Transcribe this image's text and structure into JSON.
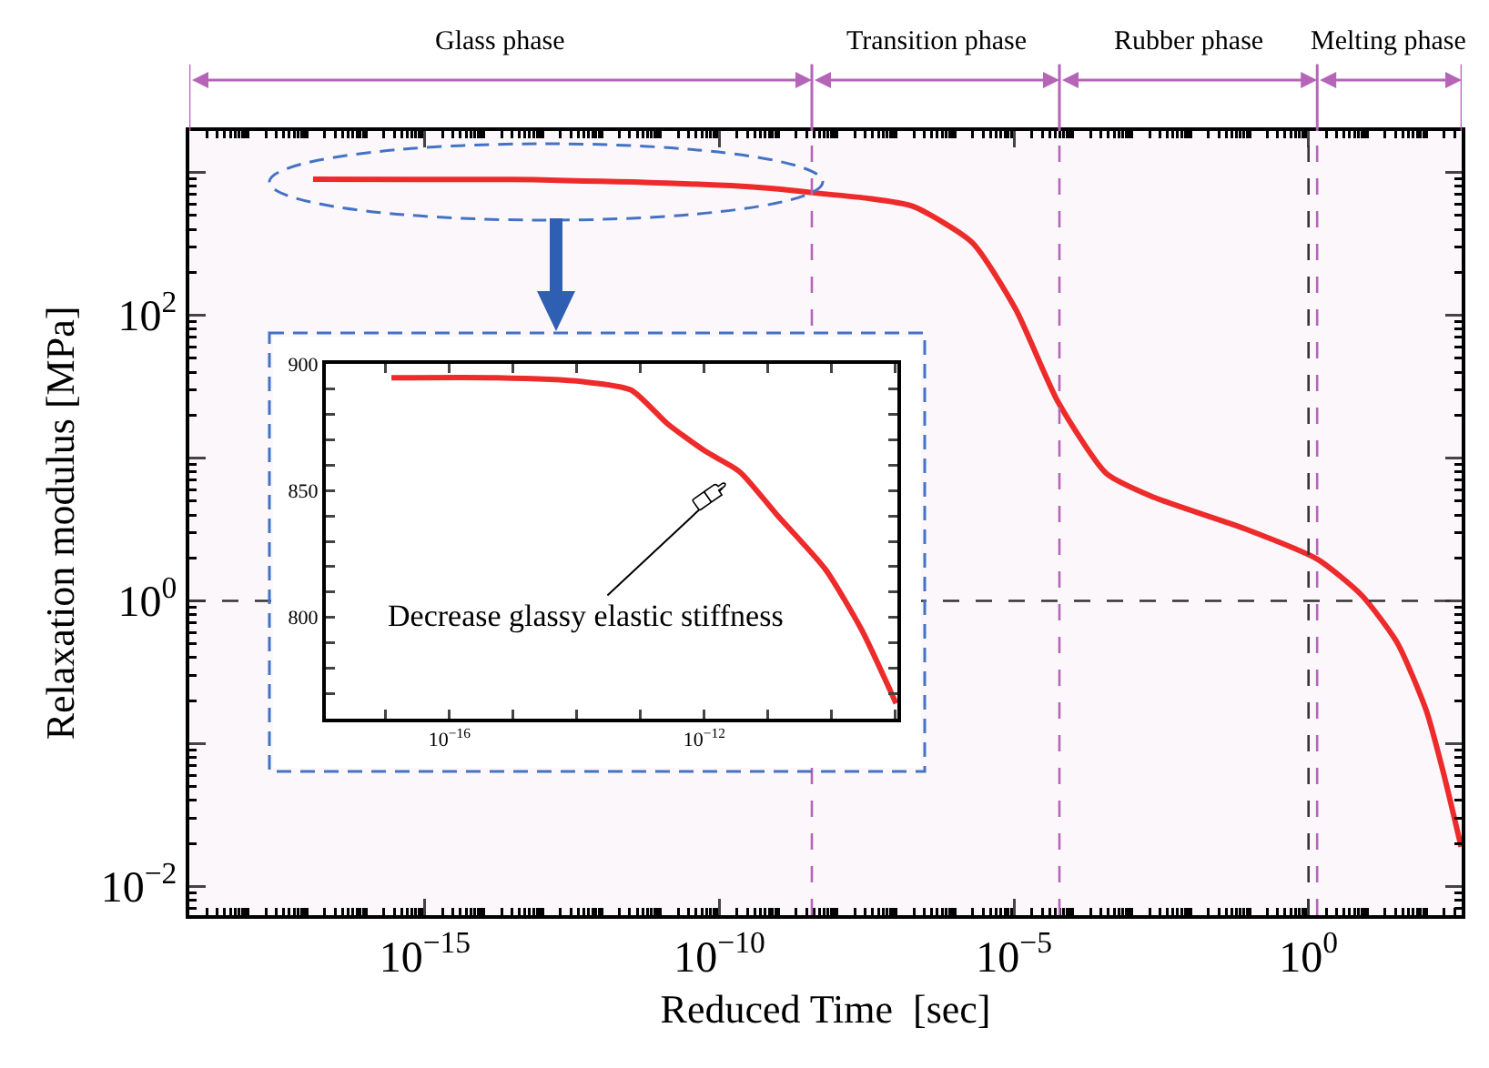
{
  "chart_data": [
    {
      "type": "line",
      "xlabel": "Reduced Time  [sec]",
      "ylabel": "Relaxation modulus [MPa]",
      "log": "xy",
      "grid": false,
      "xlim": [
        1e-19,
        398
      ],
      "ylim": [
        0.0063,
        1950
      ],
      "xticks": [
        {
          "value": 1e-15,
          "label": "10$^{−15}$"
        },
        {
          "value": 1e-10,
          "label": "10$^{−10}$"
        },
        {
          "value": 1e-05,
          "label": "10$^{−5}$"
        },
        {
          "value": 1,
          "label": "10$^{0}$"
        }
      ],
      "yticks": [
        {
          "value": 1000,
          "label": null
        },
        {
          "value": 100,
          "label": "10$^{2}$"
        },
        {
          "value": 10,
          "label": null
        },
        {
          "value": 1,
          "label": "10$^{0}$"
        },
        {
          "value": 0.1,
          "label": null
        },
        {
          "value": 0.01,
          "label": "10$^{−2}$"
        }
      ],
      "series": [
        {
          "color": "#ee2b2b",
          "x": [
            1.26e-17,
            5e-16,
            1.26e-14,
            7.1e-14,
            2.5e-13,
            1e-12,
            3.5e-12,
            1.26e-11,
            7.9e-11,
            3.2e-10,
            1e-09,
            5.4e-09,
            3.2e-08,
            1.9e-07,
            1.95e-06,
            1.07e-05,
            5.5e-05,
            0.00037,
            0.0024,
            0.083,
            1.41,
            7.9,
            32,
            100,
            204,
            389
          ],
          "values": [
            895,
            894,
            893,
            890,
            877,
            866,
            857,
            841,
            819,
            795,
            766,
            710,
            660,
            580,
            323,
            110,
            25,
            7.8,
            5.3,
            3.2,
            1.96,
            1.1,
            0.51,
            0.17,
            0.058,
            0.019
          ]
        }
      ],
      "ref_lines": [
        {
          "axis": "x",
          "value": 3.7e-09,
          "color": "#b565b8",
          "line_style": "dashed"
        },
        {
          "axis": "x",
          "value": 5.9e-05,
          "color": "#b565b8",
          "line_style": "dashed"
        },
        {
          "axis": "x",
          "value": 1.4,
          "color": "#b565b8",
          "line_style": "dashed"
        },
        {
          "axis": "x",
          "value": 1,
          "color": "#333333",
          "line_style": "dashed"
        },
        {
          "axis": "y",
          "value": 1,
          "color": "#333333",
          "line_style": "dashed"
        }
      ],
      "bands": [
        {
          "axis": "x",
          "from": 1e-19,
          "to": 3.7e-09,
          "label": "Glass phase",
          "color": "#b565b8"
        },
        {
          "axis": "x",
          "from": 3.7e-09,
          "to": 5.9e-05,
          "label": "Transition phase",
          "color": "#b565b8"
        },
        {
          "axis": "x",
          "from": 5.9e-05,
          "to": 1.4,
          "label": "Rubber phase",
          "color": "#b565b8"
        },
        {
          "axis": "x",
          "from": 1.4,
          "to": 398,
          "label": "Melting phase",
          "color": "#b565b8"
        }
      ]
    },
    {
      "type": "line",
      "log": "x",
      "grid": false,
      "xlim": [
        1.15e-18,
        1.07e-09
      ],
      "ylim": [
        760,
        900
      ],
      "xticks": [
        {
          "value": 1e-17,
          "label": null
        },
        {
          "value": 1e-16,
          "label": "10$^{−16}$"
        },
        {
          "value": 1e-15,
          "label": null
        },
        {
          "value": 1e-14,
          "label": null
        },
        {
          "value": 1e-13,
          "label": null
        },
        {
          "value": 1e-12,
          "label": "10$^{−12}$"
        },
        {
          "value": 1e-11,
          "label": null
        },
        {
          "value": 1e-10,
          "label": null
        },
        {
          "value": 1e-09,
          "label": null
        }
      ],
      "yticks": [
        {
          "value": 770,
          "label": null
        },
        {
          "value": 780,
          "label": null
        },
        {
          "value": 790,
          "label": null
        },
        800,
        {
          "value": 810,
          "label": null
        },
        {
          "value": 820,
          "label": null
        },
        {
          "value": 830,
          "label": null
        },
        {
          "value": 840,
          "label": null
        },
        850,
        {
          "value": 860,
          "label": null
        },
        {
          "value": 870,
          "label": null
        },
        {
          "value": 880,
          "label": null
        },
        {
          "value": 890,
          "label": null
        },
        900
      ],
      "series": [
        {
          "color": "#ee2b2b",
          "x": [
            1.23e-17,
            5.5e-16,
            1.23e-14,
            7.1e-14,
            2.6e-13,
            1e-12,
            3.6e-12,
            1.35e-11,
            7.9e-11,
            2.95e-10,
            1.02e-09
          ],
          "values": [
            894.5,
            894.5,
            893,
            889.7,
            876.5,
            865.8,
            857.4,
            840.7,
            819,
            795,
            766
          ]
        }
      ],
      "annotations": [
        "Decrease glassy elastic stiffness"
      ]
    }
  ]
}
